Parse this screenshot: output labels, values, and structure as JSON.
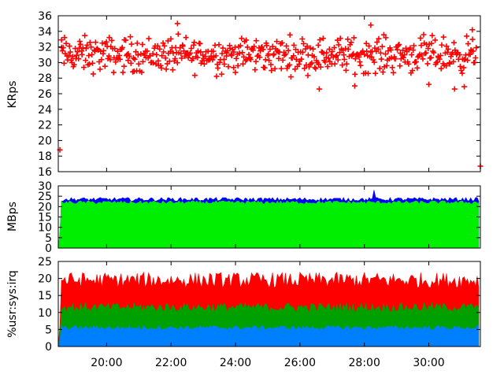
{
  "colors": {
    "red": "#ff0000",
    "blue": "#0000ff",
    "green": "#00ee00",
    "green_dark": "#00a000",
    "sky": "#0080ff",
    "black": "#000000"
  },
  "chart_data": [
    {
      "type": "scatter",
      "ylabel": "KRps",
      "ylim": [
        16,
        36
      ],
      "yticks": [
        16,
        18,
        20,
        22,
        24,
        26,
        28,
        30,
        32,
        34,
        36
      ],
      "xlim": [
        18.5,
        31.6
      ],
      "marker": "plus",
      "series": [
        {
          "color": "red",
          "baseline_mean": 31.0,
          "baseline_spread": [
            28.0,
            33.8
          ],
          "outliers": [
            {
              "x": 18.55,
              "y": 18.8
            },
            {
              "x": 18.6,
              "y": 32.9
            },
            {
              "x": 22.2,
              "y": 35.0
            },
            {
              "x": 26.6,
              "y": 26.6
            },
            {
              "x": 27.7,
              "y": 27.0
            },
            {
              "x": 28.2,
              "y": 34.8
            },
            {
              "x": 30.0,
              "y": 27.2
            },
            {
              "x": 30.8,
              "y": 26.6
            },
            {
              "x": 31.1,
              "y": 26.9
            },
            {
              "x": 31.35,
              "y": 34.2
            },
            {
              "x": 31.6,
              "y": 16.7
            }
          ]
        }
      ],
      "grid": false
    },
    {
      "type": "area",
      "ylabel": "MBps",
      "ylim": [
        0,
        30
      ],
      "yticks": [
        0,
        5,
        10,
        15,
        20,
        25,
        30
      ],
      "xlim": [
        18.5,
        31.6
      ],
      "series": [
        {
          "color": "green",
          "level": 22
        },
        {
          "color": "blue",
          "level": 23.5,
          "spike": {
            "x": 28.3,
            "y": 28.0
          }
        }
      ],
      "grid": false
    },
    {
      "type": "area",
      "ylabel": "%usr:sys:irq",
      "ylim": [
        0,
        25
      ],
      "yticks": [
        0,
        5,
        10,
        15,
        20,
        25
      ],
      "xlim": [
        18.5,
        31.6
      ],
      "xticks": [
        "20:00",
        "22:00",
        "24:00",
        "26:00",
        "28:00",
        "30:00"
      ],
      "xtick_values": [
        20,
        22,
        24,
        26,
        28,
        30
      ],
      "series": [
        {
          "color": "sky",
          "level": 5.5
        },
        {
          "color": "green_dark",
          "level": 11.5
        },
        {
          "color": "red",
          "level": 19.5
        }
      ],
      "grid": false
    }
  ]
}
